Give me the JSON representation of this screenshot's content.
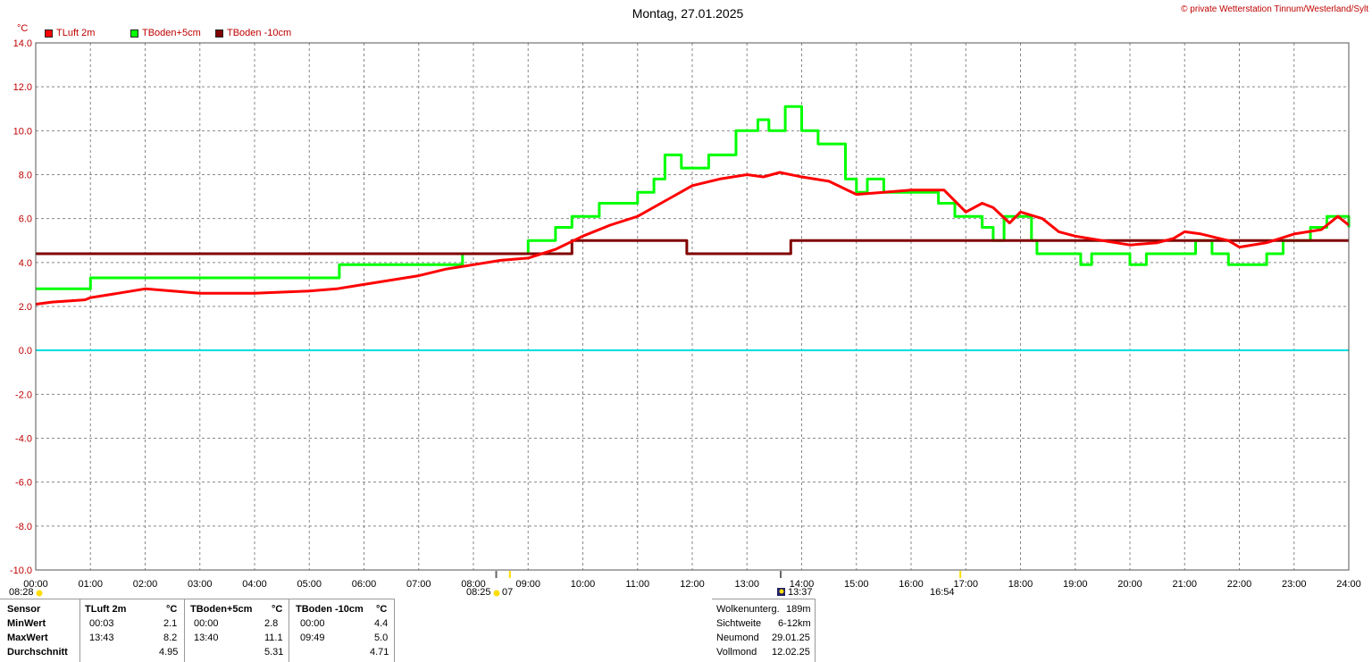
{
  "title": "Montag, 27.01.2025",
  "copyright": "© private Wetterstation Tinnum/Westerland/Sylt",
  "unit": "°C",
  "colors": {
    "tluft": "#ff0000",
    "tboden5": "#00ff00",
    "tboden10": "#800000",
    "zero": "#00dddd",
    "grid": "#888888",
    "sun": "#ffdd00",
    "moon": "#222266"
  },
  "legend": [
    {
      "label": "TLuft 2m",
      "color": "#ff0000"
    },
    {
      "label": "TBoden+5cm",
      "color": "#00ff00"
    },
    {
      "label": "TBoden -10cm",
      "color": "#800000"
    }
  ],
  "sun_moon": {
    "sunrise": "08:28",
    "moonrise": "08:25",
    "moonrise_extra": "07",
    "moonset": "13:37",
    "sunset": "16:54"
  },
  "chart_data": {
    "type": "line",
    "xlabel": "",
    "ylabel": "°C",
    "xlim": [
      0,
      24
    ],
    "ylim": [
      -10,
      14
    ],
    "y_ticks": [
      "14.0",
      "12.0",
      "10.0",
      "8.0",
      "6.0",
      "4.0",
      "2.0",
      "0.0",
      "-2.0",
      "-4.0",
      "-6.0",
      "-8.0",
      "-10.0"
    ],
    "x_ticks": [
      "00:00",
      "01:00",
      "02:00",
      "03:00",
      "04:00",
      "05:00",
      "06:00",
      "07:00",
      "08:00",
      "09:00",
      "10:00",
      "11:00",
      "12:00",
      "13:00",
      "14:00",
      "15:00",
      "16:00",
      "17:00",
      "18:00",
      "19:00",
      "20:00",
      "21:00",
      "22:00",
      "23:00",
      "24:00"
    ],
    "grid": true,
    "series": [
      {
        "name": "TLuft 2m",
        "color": "#ff0000",
        "points": [
          [
            0,
            2.1
          ],
          [
            0.3,
            2.2
          ],
          [
            0.9,
            2.3
          ],
          [
            1.0,
            2.4
          ],
          [
            1.5,
            2.6
          ],
          [
            2.0,
            2.8
          ],
          [
            2.5,
            2.7
          ],
          [
            3.0,
            2.6
          ],
          [
            4.0,
            2.6
          ],
          [
            5.0,
            2.7
          ],
          [
            5.5,
            2.8
          ],
          [
            6.0,
            3.0
          ],
          [
            6.5,
            3.2
          ],
          [
            7.0,
            3.4
          ],
          [
            7.5,
            3.7
          ],
          [
            8.0,
            3.9
          ],
          [
            8.5,
            4.1
          ],
          [
            9.0,
            4.2
          ],
          [
            9.5,
            4.6
          ],
          [
            10.0,
            5.2
          ],
          [
            10.5,
            5.7
          ],
          [
            11.0,
            6.1
          ],
          [
            11.5,
            6.8
          ],
          [
            12.0,
            7.5
          ],
          [
            12.5,
            7.8
          ],
          [
            13.0,
            8.0
          ],
          [
            13.3,
            7.9
          ],
          [
            13.6,
            8.1
          ],
          [
            14.0,
            7.9
          ],
          [
            14.5,
            7.7
          ],
          [
            15.0,
            7.1
          ],
          [
            15.5,
            7.2
          ],
          [
            16.0,
            7.3
          ],
          [
            16.6,
            7.3
          ],
          [
            17.0,
            6.3
          ],
          [
            17.3,
            6.7
          ],
          [
            17.5,
            6.5
          ],
          [
            17.8,
            5.8
          ],
          [
            18.0,
            6.3
          ],
          [
            18.4,
            6.0
          ],
          [
            18.7,
            5.4
          ],
          [
            19.0,
            5.2
          ],
          [
            19.5,
            5.0
          ],
          [
            20.0,
            4.8
          ],
          [
            20.5,
            4.9
          ],
          [
            20.8,
            5.1
          ],
          [
            21.0,
            5.4
          ],
          [
            21.3,
            5.3
          ],
          [
            21.8,
            5.0
          ],
          [
            22.0,
            4.7
          ],
          [
            22.5,
            4.9
          ],
          [
            23.0,
            5.3
          ],
          [
            23.5,
            5.5
          ],
          [
            23.8,
            6.1
          ],
          [
            24.0,
            5.7
          ]
        ]
      },
      {
        "name": "TBoden+5cm",
        "color": "#00ff00",
        "points": [
          [
            0,
            2.8
          ],
          [
            1.0,
            2.8
          ],
          [
            1.0,
            3.3
          ],
          [
            5.55,
            3.3
          ],
          [
            5.55,
            3.9
          ],
          [
            7.8,
            3.9
          ],
          [
            7.8,
            4.4
          ],
          [
            9.0,
            4.4
          ],
          [
            9.0,
            5.0
          ],
          [
            9.5,
            5.0
          ],
          [
            9.5,
            5.6
          ],
          [
            9.8,
            5.6
          ],
          [
            9.8,
            6.1
          ],
          [
            10.3,
            6.1
          ],
          [
            10.3,
            6.7
          ],
          [
            11.0,
            6.7
          ],
          [
            11.0,
            7.2
          ],
          [
            11.3,
            7.2
          ],
          [
            11.3,
            7.8
          ],
          [
            11.5,
            7.8
          ],
          [
            11.5,
            8.9
          ],
          [
            11.8,
            8.9
          ],
          [
            11.8,
            8.3
          ],
          [
            12.3,
            8.3
          ],
          [
            12.3,
            8.9
          ],
          [
            12.8,
            8.9
          ],
          [
            12.8,
            10.0
          ],
          [
            13.2,
            10.0
          ],
          [
            13.2,
            10.5
          ],
          [
            13.4,
            10.5
          ],
          [
            13.4,
            10.0
          ],
          [
            13.7,
            10.0
          ],
          [
            13.7,
            11.1
          ],
          [
            14.0,
            11.1
          ],
          [
            14.0,
            10.0
          ],
          [
            14.3,
            10.0
          ],
          [
            14.3,
            9.4
          ],
          [
            14.8,
            9.4
          ],
          [
            14.8,
            7.8
          ],
          [
            15.0,
            7.8
          ],
          [
            15.0,
            7.2
          ],
          [
            15.2,
            7.2
          ],
          [
            15.2,
            7.8
          ],
          [
            15.5,
            7.8
          ],
          [
            15.5,
            7.2
          ],
          [
            16.5,
            7.2
          ],
          [
            16.5,
            6.7
          ],
          [
            16.8,
            6.7
          ],
          [
            16.8,
            6.1
          ],
          [
            17.3,
            6.1
          ],
          [
            17.3,
            5.6
          ],
          [
            17.5,
            5.6
          ],
          [
            17.5,
            5.0
          ],
          [
            17.7,
            5.0
          ],
          [
            17.7,
            6.1
          ],
          [
            18.2,
            6.1
          ],
          [
            18.2,
            5.0
          ],
          [
            18.3,
            5.0
          ],
          [
            18.3,
            4.4
          ],
          [
            19.1,
            4.4
          ],
          [
            19.1,
            3.9
          ],
          [
            19.3,
            3.9
          ],
          [
            19.3,
            4.4
          ],
          [
            20.0,
            4.4
          ],
          [
            20.0,
            3.9
          ],
          [
            20.3,
            3.9
          ],
          [
            20.3,
            4.4
          ],
          [
            21.2,
            4.4
          ],
          [
            21.2,
            5.0
          ],
          [
            21.5,
            5.0
          ],
          [
            21.5,
            4.4
          ],
          [
            21.8,
            4.4
          ],
          [
            21.8,
            3.9
          ],
          [
            22.5,
            3.9
          ],
          [
            22.5,
            4.4
          ],
          [
            22.8,
            4.4
          ],
          [
            22.8,
            5.0
          ],
          [
            23.3,
            5.0
          ],
          [
            23.3,
            5.6
          ],
          [
            23.6,
            5.6
          ],
          [
            23.6,
            6.1
          ],
          [
            24.0,
            6.1
          ],
          [
            24.0,
            5.6
          ]
        ]
      },
      {
        "name": "TBoden -10cm",
        "color": "#800000",
        "points": [
          [
            0,
            4.4
          ],
          [
            9.8,
            4.4
          ],
          [
            9.8,
            5.0
          ],
          [
            11.9,
            5.0
          ],
          [
            11.9,
            4.4
          ],
          [
            13.8,
            4.4
          ],
          [
            13.8,
            5.0
          ],
          [
            24.0,
            5.0
          ]
        ]
      }
    ]
  },
  "stats": {
    "headers": {
      "sensor": "Sensor",
      "tluft": "TLuft 2m",
      "unit1": "°C",
      "tb5": "TBoden+5cm",
      "unit2": "°C",
      "tb10": "TBoden -10cm",
      "unit3": "°C"
    },
    "rows": [
      {
        "label": "MinWert",
        "t1": "00:03",
        "v1": "2.1",
        "t2": "00:00",
        "v2": "2.8",
        "t3": "00:00",
        "v3": "4.4"
      },
      {
        "label": "MaxWert",
        "t1": "13:43",
        "v1": "8.2",
        "t2": "13:40",
        "v2": "11.1",
        "t3": "09:49",
        "v3": "5.0"
      },
      {
        "label": "Durchschnitt",
        "t1": "",
        "v1": "4.95",
        "t2": "",
        "v2": "5.31",
        "t3": "",
        "v3": "4.71"
      }
    ]
  },
  "extra": [
    {
      "label": "Wolkenunterg.",
      "value": "189m"
    },
    {
      "label": "Sichtweite",
      "value": "6-12km"
    },
    {
      "label": "Neumond",
      "value": "29.01.25"
    },
    {
      "label": "Vollmond",
      "value": "12.02.25"
    }
  ]
}
